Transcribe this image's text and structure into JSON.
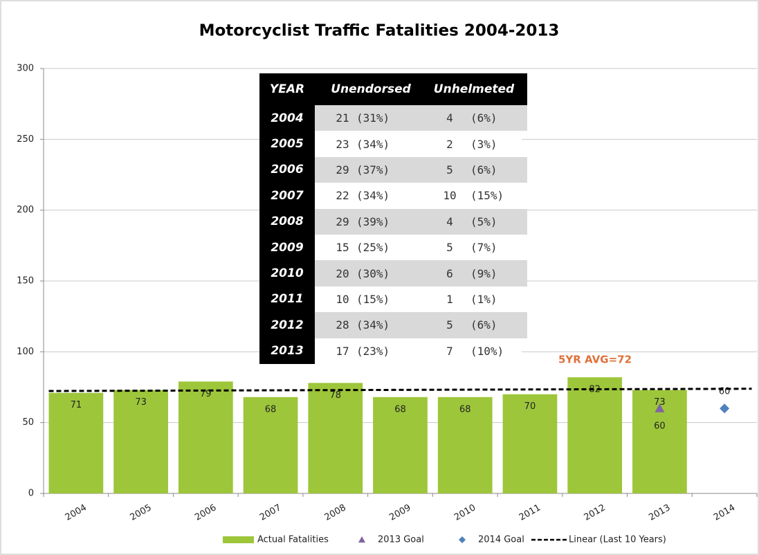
{
  "chart_data": {
    "type": "bar",
    "title": "Motorcyclist Traffic Fatalities 2004-2013",
    "categories": [
      "2004",
      "2005",
      "2006",
      "2007",
      "2008",
      "2009",
      "2010",
      "2011",
      "2012",
      "2013",
      "2014"
    ],
    "series": [
      {
        "name": "Actual Fatalities",
        "type": "bar",
        "color": "#9dc63b",
        "values": [
          71,
          73,
          79,
          68,
          78,
          68,
          68,
          70,
          82,
          73,
          null
        ]
      },
      {
        "name": "2013 Goal",
        "type": "marker",
        "marker": "triangle",
        "color": "#8064a2",
        "values": [
          null,
          null,
          null,
          null,
          null,
          null,
          null,
          null,
          null,
          60,
          null
        ]
      },
      {
        "name": "2014 Goal",
        "type": "marker",
        "marker": "diamond",
        "color": "#4f81bd",
        "values": [
          null,
          null,
          null,
          null,
          null,
          null,
          null,
          null,
          null,
          null,
          60
        ]
      },
      {
        "name": "Linear (Last 10 Years)",
        "type": "trendline",
        "color": "#000000",
        "x": [
          "2004",
          "2014"
        ],
        "values": [
          72.3,
          73.9
        ]
      }
    ],
    "ylim": [
      0,
      300
    ],
    "yticks": [
      0,
      50,
      100,
      150,
      200,
      250,
      300
    ],
    "grid": true,
    "annotation": "5YR AVG=72",
    "legend": "bottom"
  },
  "table": {
    "header": [
      "YEAR",
      "Unendorsed",
      "Unhelmeted"
    ],
    "rows": [
      [
        "2004",
        "21",
        "(31%)",
        "4",
        "(6%)"
      ],
      [
        "2005",
        "23",
        "(34%)",
        "2",
        "(3%)"
      ],
      [
        "2006",
        "29",
        "(37%)",
        "5",
        "(6%)"
      ],
      [
        "2007",
        "22",
        "(34%)",
        "10",
        "(15%)"
      ],
      [
        "2008",
        "29",
        "(39%)",
        "4",
        "(5%)"
      ],
      [
        "2009",
        "15",
        "(25%)",
        "5",
        "(7%)"
      ],
      [
        "2010",
        "20",
        "(30%)",
        "6",
        "(9%)"
      ],
      [
        "2011",
        "10",
        "(15%)",
        "1",
        "(1%)"
      ],
      [
        "2012",
        "28",
        "(34%)",
        "5",
        "(6%)"
      ],
      [
        "2013",
        "17",
        "(23%)",
        "7",
        "(10%)"
      ]
    ]
  }
}
